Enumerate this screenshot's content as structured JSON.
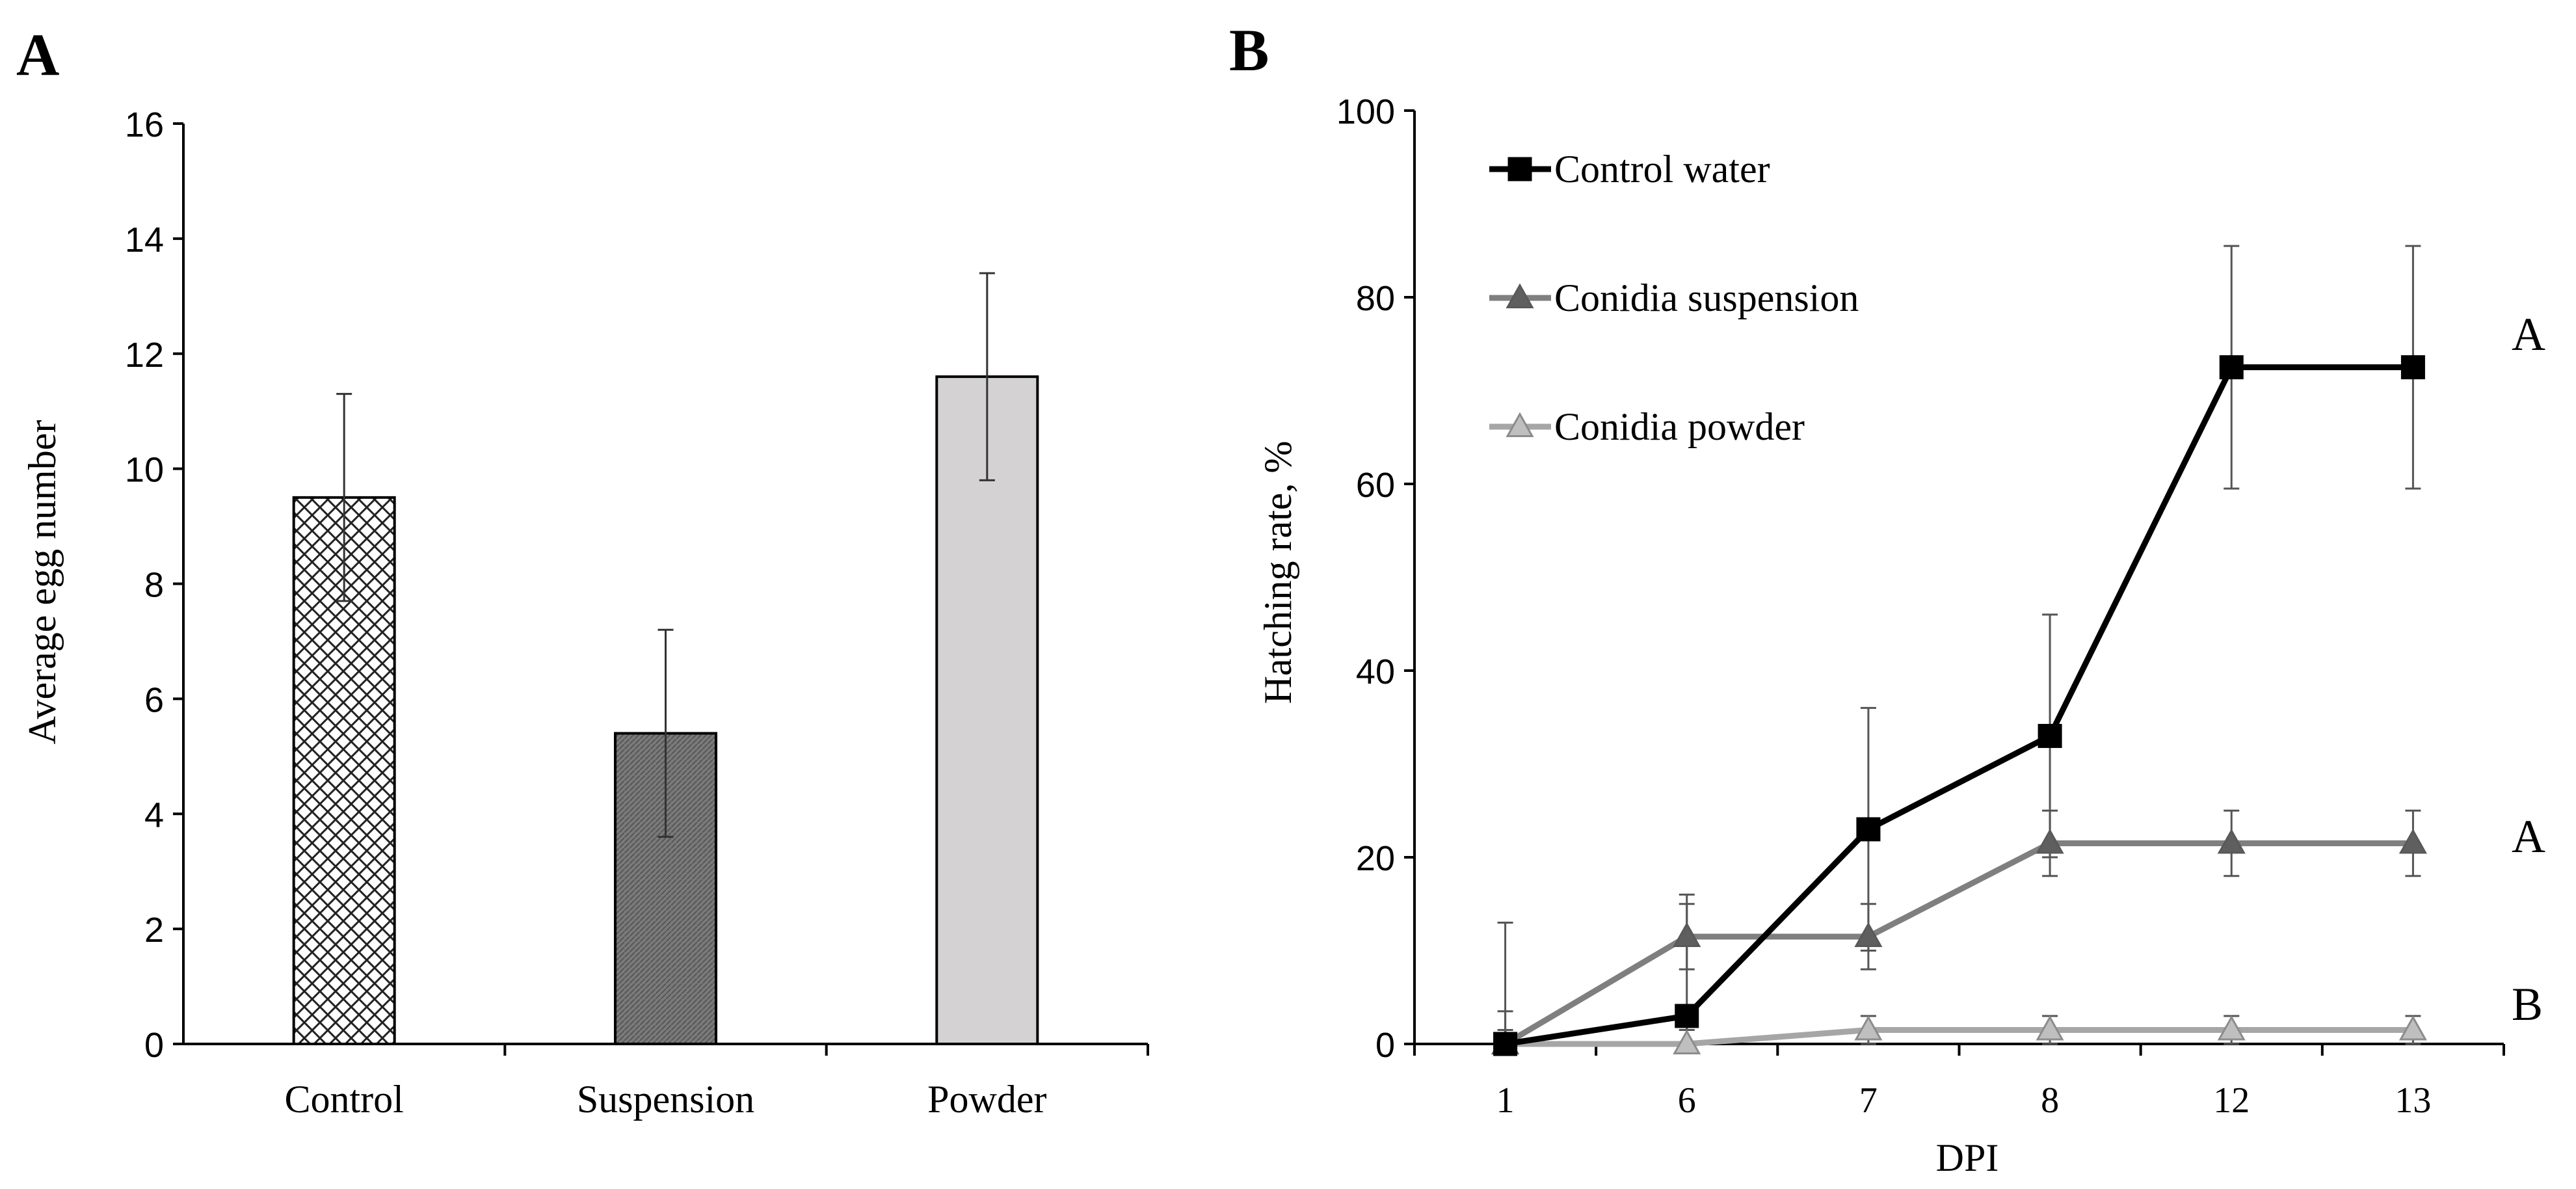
{
  "chart_data": [
    {
      "panel_label": "A",
      "type": "bar",
      "categories": [
        "Control",
        "Suspension",
        "Powder"
      ],
      "values": [
        9.5,
        5.4,
        11.6
      ],
      "error": [
        1.8,
        1.8,
        1.8
      ],
      "ylabel": "Average egg number",
      "xlabel": "",
      "ylim": [
        0,
        16
      ],
      "yticks": [
        "0",
        "2",
        "4",
        "6",
        "8",
        "10",
        "12",
        "14",
        "16"
      ],
      "colors": [
        "#ffffff",
        "#7a7a7a",
        "#d4d2d3"
      ]
    },
    {
      "panel_label": "B",
      "type": "line",
      "x": [
        "1",
        "6",
        "7",
        "8",
        "12",
        "13"
      ],
      "series": [
        {
          "name": "Control water",
          "values": [
            0,
            3,
            23,
            33,
            72.5,
            72.5
          ],
          "error": [
            13,
            13,
            13,
            13,
            13,
            13
          ],
          "color": "#000000",
          "marker": "square",
          "group_letter": "A"
        },
        {
          "name": "Conidia suspension",
          "values": [
            0,
            11.5,
            11.5,
            21.5,
            21.5,
            21.5
          ],
          "error": [
            3.5,
            3.5,
            3.5,
            3.5,
            3.5,
            3.5
          ],
          "color": "#7f7f7f",
          "marker": "triangle",
          "group_letter": "A"
        },
        {
          "name": "Conidia powder",
          "values": [
            0,
            0,
            1.5,
            1.5,
            1.5,
            1.5
          ],
          "error": [
            1.5,
            1.5,
            1.5,
            1.5,
            1.5,
            1.5
          ],
          "color": "#a6a6a6",
          "marker": "triangle",
          "group_letter": "B"
        }
      ],
      "ylabel": "Hatching rate, %",
      "xlabel": "DPI",
      "ylim": [
        0,
        100
      ],
      "yticks": [
        "0",
        "20",
        "40",
        "60",
        "80",
        "100"
      ],
      "legend_position": "top-left"
    }
  ]
}
